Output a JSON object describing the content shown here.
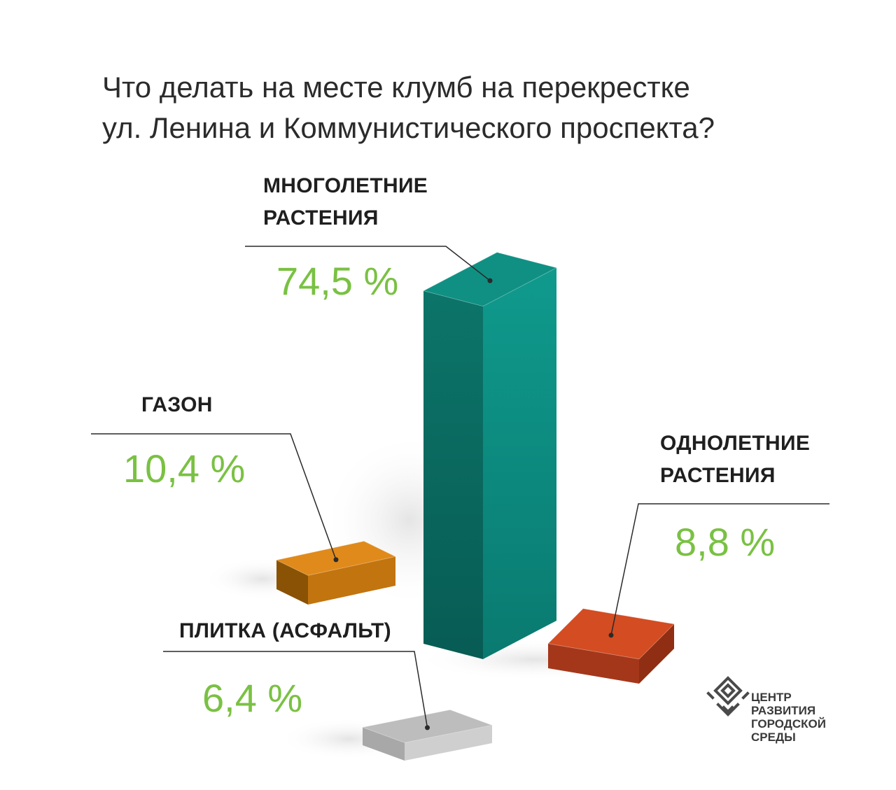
{
  "title": {
    "line1": "Что делать на месте клумб на перекрестке",
    "line2": "ул. Ленина и Коммунистического проспекта?"
  },
  "chart_data": {
    "type": "bar",
    "categories": [
      "МНОГОЛЕТНИЕ РАСТЕНИЯ",
      "ГАЗОН",
      "ОДНОЛЕТНИЕ РАСТЕНИЯ",
      "ПЛИТКА (АСФАЛЬТ)"
    ],
    "values": [
      74.5,
      10.4,
      8.8,
      6.4
    ],
    "value_labels": [
      "74,5 %",
      "10,4 %",
      "8,8 %",
      "6,4 %"
    ],
    "colors": [
      "#0e8a80",
      "#e0891c",
      "#d44a21",
      "#c0c0c0"
    ],
    "unit": "%",
    "style": "3d-blocks",
    "title": "Что делать на месте клумб на перекрестке ул. Ленина и Коммунистического проспекта?"
  },
  "labels": {
    "perennial": {
      "line1": "МНОГОЛЕТНИЕ",
      "line2": "РАСТЕНИЯ",
      "value": "74,5 %"
    },
    "lawn": {
      "line1": "ГАЗОН",
      "value": "10,4 %"
    },
    "annual": {
      "line1": "ОДНОЛЕТНИЕ",
      "line2": "РАСТЕНИЯ",
      "value": "8,8 %"
    },
    "tile": {
      "line1": "ПЛИТКА (АСФАЛЬТ)",
      "value": "6,4 %"
    }
  },
  "logo": {
    "line1": "ЦЕНТР",
    "line2": "РАЗВИТИЯ",
    "line3": "ГОРОДСКОЙ",
    "line4": "СРЕДЫ"
  }
}
